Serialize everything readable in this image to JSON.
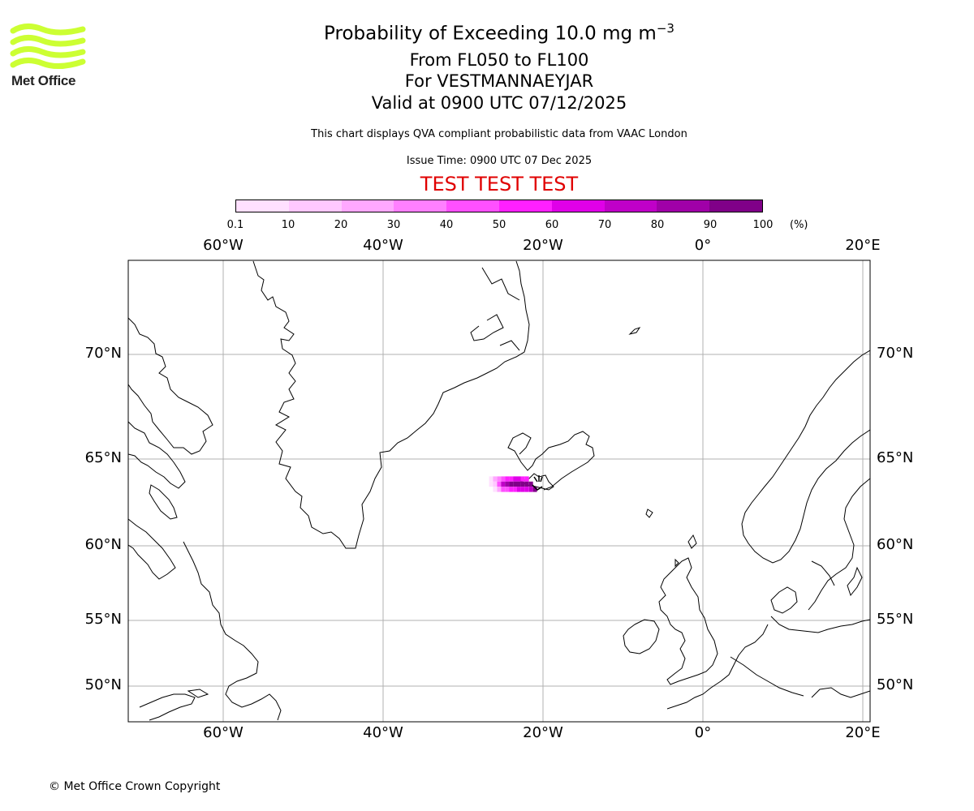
{
  "logo": {
    "text": "Met Office",
    "color": "#ccff33"
  },
  "title": {
    "line1_main": "Probability of Exceeding 10.0 mg m",
    "line1_sup": "−3",
    "line2": "From FL050 to FL100",
    "line3": "For VESTMANNAEYJAR",
    "line4": "Valid at 0900 UTC 07/12/2025"
  },
  "subtitle": "This chart displays QVA compliant probabilistic data from VAAC London",
  "issue_time": "Issue Time: 0900 UTC 07 Dec 2025",
  "test_banner": "TEST TEST TEST",
  "colorbar": {
    "ticks": [
      "0.1",
      "10",
      "20",
      "30",
      "40",
      "50",
      "60",
      "70",
      "80",
      "90",
      "100"
    ],
    "unit": "(%)",
    "colors": [
      "#ffe0ff",
      "#ffc8ff",
      "#ffa8ff",
      "#ff80ff",
      "#ff50ff",
      "#ff20ff",
      "#e000e8",
      "#c000c8",
      "#a000a8",
      "#800088",
      "#600068"
    ]
  },
  "map": {
    "lon_labels": [
      "60°W",
      "40°W",
      "20°W",
      "0°",
      "20°E"
    ],
    "lat_labels": [
      "70°N",
      "65°N",
      "60°N",
      "55°N",
      "50°N"
    ]
  },
  "plume": {
    "cells": [
      {
        "lon": -26.5,
        "lat": 63.85,
        "p": 0.3
      },
      {
        "lon": -26.5,
        "lat": 63.55,
        "p": 5
      },
      {
        "lon": -26.0,
        "lat": 63.85,
        "p": 20
      },
      {
        "lon": -26.0,
        "lat": 63.55,
        "p": 15
      },
      {
        "lon": -26.0,
        "lat": 63.25,
        "p": 8
      },
      {
        "lon": -25.5,
        "lat": 63.85,
        "p": 35
      },
      {
        "lon": -25.5,
        "lat": 63.55,
        "p": 40
      },
      {
        "lon": -25.5,
        "lat": 63.25,
        "p": 25
      },
      {
        "lon": -25.0,
        "lat": 63.85,
        "p": 45
      },
      {
        "lon": -25.0,
        "lat": 63.55,
        "p": 70
      },
      {
        "lon": -25.0,
        "lat": 63.25,
        "p": 40
      },
      {
        "lon": -24.5,
        "lat": 63.85,
        "p": 50
      },
      {
        "lon": -24.5,
        "lat": 63.55,
        "p": 85
      },
      {
        "lon": -24.5,
        "lat": 63.25,
        "p": 45
      },
      {
        "lon": -24.0,
        "lat": 63.85,
        "p": 55
      },
      {
        "lon": -24.0,
        "lat": 63.55,
        "p": 90
      },
      {
        "lon": -24.0,
        "lat": 63.25,
        "p": 55
      },
      {
        "lon": -23.5,
        "lat": 63.85,
        "p": 60
      },
      {
        "lon": -23.5,
        "lat": 63.55,
        "p": 92
      },
      {
        "lon": -23.5,
        "lat": 63.25,
        "p": 55
      },
      {
        "lon": -23.0,
        "lat": 63.85,
        "p": 60
      },
      {
        "lon": -23.0,
        "lat": 63.55,
        "p": 93
      },
      {
        "lon": -23.0,
        "lat": 63.25,
        "p": 60
      },
      {
        "lon": -22.5,
        "lat": 63.85,
        "p": 55
      },
      {
        "lon": -22.5,
        "lat": 63.55,
        "p": 95
      },
      {
        "lon": -22.5,
        "lat": 63.25,
        "p": 60
      },
      {
        "lon": -22.0,
        "lat": 63.85,
        "p": 50
      },
      {
        "lon": -22.0,
        "lat": 63.55,
        "p": 95
      },
      {
        "lon": -22.0,
        "lat": 63.25,
        "p": 65
      },
      {
        "lon": -21.5,
        "lat": 63.55,
        "p": 97
      },
      {
        "lon": -21.5,
        "lat": 63.25,
        "p": 75
      },
      {
        "lon": -21.0,
        "lat": 63.25,
        "p": 99
      }
    ]
  },
  "copyright": "© Met Office Crown Copyright"
}
